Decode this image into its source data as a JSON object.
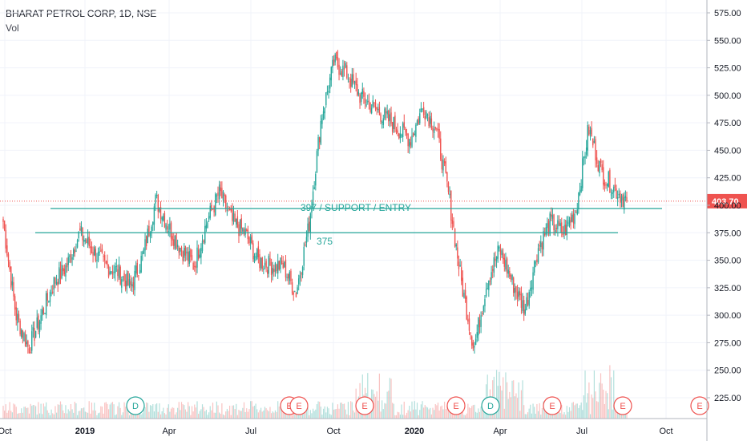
{
  "header": {
    "title": "BHARAT PETROL CORP, 1D, NSE",
    "indicator": "Vol"
  },
  "colors": {
    "up": "#26a69a",
    "down": "#ef5350",
    "grid": "#f0f3fa",
    "line": "#26a69a",
    "price_tag": "#ef5350"
  },
  "chart_data": {
    "type": "line",
    "y_ticks": [
      "575.00",
      "550.00",
      "525.00",
      "500.00",
      "475.00",
      "450.00",
      "425.00",
      "400.00",
      "375.00",
      "350.00",
      "325.00",
      "300.00",
      "275.00",
      "250.00",
      "225.00"
    ],
    "y_tick_values": [
      575,
      550,
      525,
      500,
      475,
      450,
      425,
      400,
      375,
      350,
      325,
      300,
      275,
      250,
      225
    ],
    "ylim": [
      208,
      585
    ],
    "x_ticks": [
      "Oct",
      "2019",
      "Apr",
      "Jul",
      "Oct",
      "2020",
      "Apr",
      "Jul",
      "Oct"
    ],
    "last_price": "403.70",
    "last_price_value": 403.7,
    "lines": [
      {
        "label": "397 / SUPPORT / ENTRY",
        "value": 397
      },
      {
        "label": "375",
        "value": 375
      }
    ],
    "price_path": [
      [
        "Oct 2018",
        385
      ],
      [
        "Oct 2018",
        300
      ],
      [
        "Nov 2018",
        270
      ],
      [
        "Nov 2018",
        300
      ],
      [
        "Dec 2018",
        330
      ],
      [
        "Dec 2018",
        345
      ],
      [
        "Jan 2019",
        375
      ],
      [
        "Jan 2019",
        360
      ],
      [
        "Feb 2019",
        345
      ],
      [
        "Feb 2019",
        340
      ],
      [
        "Mar 2019",
        325
      ],
      [
        "Mar 2019",
        355
      ],
      [
        "Apr 2019",
        405
      ],
      [
        "Apr 2019",
        380
      ],
      [
        "May 2019",
        360
      ],
      [
        "May 2019",
        345
      ],
      [
        "Jun 2019",
        385
      ],
      [
        "Jun 2019",
        412
      ],
      [
        "Jul 2019",
        385
      ],
      [
        "Jul 2019",
        375
      ],
      [
        "Aug 2019",
        350
      ],
      [
        "Aug 2019",
        345
      ],
      [
        "Sep 2019",
        345
      ],
      [
        "Sep 2019",
        320
      ],
      [
        "Oct 2019",
        380
      ],
      [
        "Oct 2019",
        480
      ],
      [
        "Nov 2019",
        530
      ],
      [
        "Nov 2019",
        520
      ],
      [
        "Dec 2019",
        500
      ],
      [
        "Dec 2019",
        490
      ],
      [
        "Jan 2020",
        480
      ],
      [
        "Jan 2020",
        470
      ],
      [
        "Feb 2020",
        460
      ],
      [
        "Feb 2020",
        490
      ],
      [
        "Mar 2020",
        470
      ],
      [
        "Mar 2020",
        410
      ],
      [
        "Mar 2020",
        330
      ],
      [
        "Apr 2020",
        270
      ],
      [
        "Apr 2020",
        330
      ],
      [
        "May 2020",
        360
      ],
      [
        "May 2020",
        330
      ],
      [
        "Jun 2020",
        305
      ],
      [
        "Jun 2020",
        360
      ],
      [
        "Jul 2020",
        385
      ],
      [
        "Jul 2020",
        375
      ],
      [
        "Jul 2020",
        395
      ],
      [
        "Aug 2020",
        470
      ],
      [
        "Aug 2020",
        430
      ],
      [
        "Aug 2020",
        415
      ],
      [
        "Sep 2020",
        403.7
      ]
    ],
    "event_markers": [
      {
        "label": "D",
        "kind": "dividend"
      },
      {
        "label": "E",
        "kind": "earnings"
      },
      {
        "label": "E",
        "kind": "earnings"
      },
      {
        "label": "E",
        "kind": "earnings"
      },
      {
        "label": "E",
        "kind": "earnings"
      },
      {
        "label": "D",
        "kind": "dividend"
      },
      {
        "label": "E",
        "kind": "earnings"
      },
      {
        "label": "E",
        "kind": "earnings"
      },
      {
        "label": "E",
        "kind": "earnings"
      }
    ]
  }
}
